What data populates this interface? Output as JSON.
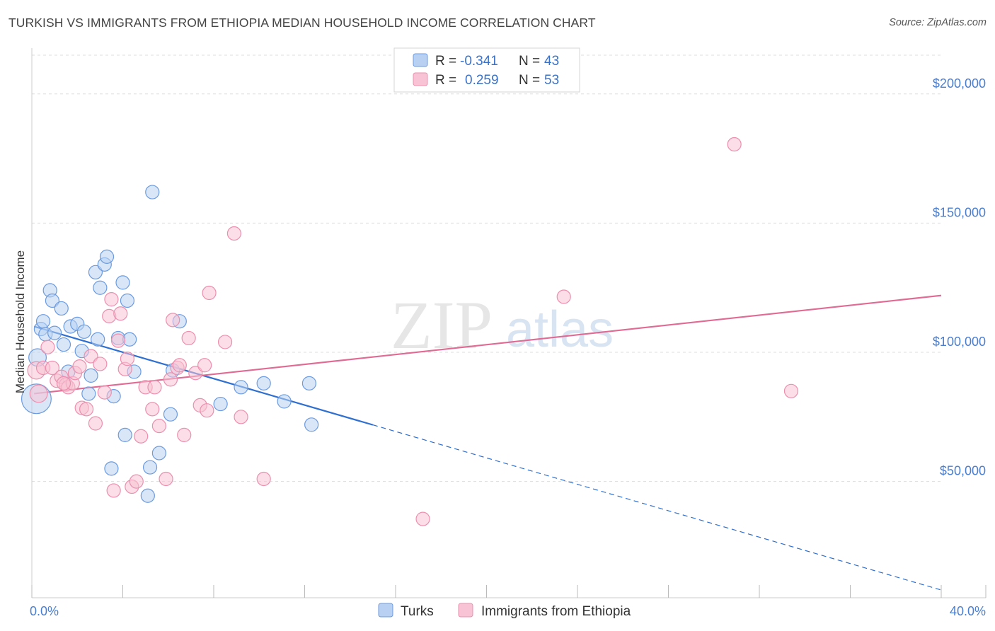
{
  "title": "TURKISH VS IMMIGRANTS FROM ETHIOPIA MEDIAN HOUSEHOLD INCOME CORRELATION CHART",
  "source": "Source: ZipAtlas.com",
  "watermark": {
    "zip": "ZIP",
    "atlas": "atlas"
  },
  "colors": {
    "turks_fill": "#b8d1f2",
    "turks_stroke": "#6b9be0",
    "turks_line": "#2e6fd0",
    "eth_fill": "#f8c3d4",
    "eth_stroke": "#ec8fae",
    "eth_line": "#e06a93",
    "grid": "#dddddd",
    "tick_label": "#4a7fd0"
  },
  "legend": {
    "rows": [
      {
        "r_label": "R =",
        "r_value": "-0.341",
        "n_label": "N =",
        "n_value": "43",
        "series": "Turks"
      },
      {
        "r_label": "R =",
        "r_value": "0.259",
        "n_label": "N =",
        "n_value": "53",
        "series": "Immigrants from Ethiopia"
      }
    ]
  },
  "chart_data": {
    "type": "scatter",
    "title": "TURKISH VS IMMIGRANTS FROM ETHIOPIA MEDIAN HOUSEHOLD INCOME CORRELATION CHART",
    "xlabel": "",
    "ylabel": "Median Household Income",
    "xlim": [
      0,
      40
    ],
    "ylim": [
      5000,
      215000
    ],
    "x_tick_labels": [
      {
        "value": 0,
        "label": "0.0%"
      },
      {
        "value": 40,
        "label": "40.0%"
      }
    ],
    "y_ticks": [
      {
        "value": 50000,
        "label": "$50,000"
      },
      {
        "value": 100000,
        "label": "$100,000"
      },
      {
        "value": 150000,
        "label": "$150,000"
      },
      {
        "value": 200000,
        "label": "$200,000"
      }
    ],
    "grid": true,
    "legend_position": "top-center",
    "series": [
      {
        "name": "Turks",
        "r": -0.341,
        "n": 43,
        "trend": {
          "x0": 0.1,
          "y0": 110000,
          "x_solid_end": 15.0,
          "x1": 40.0,
          "y1": 8000
        },
        "points": [
          {
            "x": 0.2,
            "y": 82000,
            "size": 2.2
          },
          {
            "x": 0.25,
            "y": 98000,
            "size": 1.3
          },
          {
            "x": 0.4,
            "y": 109000,
            "size": 1.0
          },
          {
            "x": 0.5,
            "y": 112000,
            "size": 1.0
          },
          {
            "x": 0.6,
            "y": 107000,
            "size": 1.0
          },
          {
            "x": 0.8,
            "y": 124000,
            "size": 1.0
          },
          {
            "x": 0.9,
            "y": 120000,
            "size": 1.0
          },
          {
            "x": 1.0,
            "y": 107500,
            "size": 1.0
          },
          {
            "x": 1.3,
            "y": 117000,
            "size": 1.0
          },
          {
            "x": 1.4,
            "y": 103000,
            "size": 1.0
          },
          {
            "x": 1.6,
            "y": 92500,
            "size": 1.0
          },
          {
            "x": 1.7,
            "y": 110000,
            "size": 1.0
          },
          {
            "x": 2.0,
            "y": 111000,
            "size": 1.0
          },
          {
            "x": 2.2,
            "y": 100500,
            "size": 1.0
          },
          {
            "x": 2.3,
            "y": 108000,
            "size": 1.0
          },
          {
            "x": 2.5,
            "y": 84000,
            "size": 1.0
          },
          {
            "x": 2.6,
            "y": 91000,
            "size": 1.0
          },
          {
            "x": 2.8,
            "y": 131000,
            "size": 1.0
          },
          {
            "x": 2.9,
            "y": 105000,
            "size": 1.0
          },
          {
            "x": 3.0,
            "y": 125000,
            "size": 1.0
          },
          {
            "x": 3.2,
            "y": 134000,
            "size": 1.0
          },
          {
            "x": 3.3,
            "y": 137000,
            "size": 1.0
          },
          {
            "x": 3.5,
            "y": 55000,
            "size": 1.0
          },
          {
            "x": 3.6,
            "y": 83000,
            "size": 1.0
          },
          {
            "x": 3.8,
            "y": 105500,
            "size": 1.0
          },
          {
            "x": 4.0,
            "y": 127000,
            "size": 1.0
          },
          {
            "x": 4.1,
            "y": 68000,
            "size": 1.0
          },
          {
            "x": 4.2,
            "y": 120000,
            "size": 1.0
          },
          {
            "x": 4.3,
            "y": 105000,
            "size": 1.0
          },
          {
            "x": 4.5,
            "y": 92500,
            "size": 1.0
          },
          {
            "x": 5.1,
            "y": 44500,
            "size": 1.0
          },
          {
            "x": 5.2,
            "y": 55500,
            "size": 1.0
          },
          {
            "x": 5.3,
            "y": 162000,
            "size": 1.0
          },
          {
            "x": 5.6,
            "y": 61000,
            "size": 1.0
          },
          {
            "x": 6.1,
            "y": 76000,
            "size": 1.0
          },
          {
            "x": 6.5,
            "y": 112000,
            "size": 1.0
          },
          {
            "x": 6.2,
            "y": 93000,
            "size": 1.0
          },
          {
            "x": 8.3,
            "y": 80000,
            "size": 1.0
          },
          {
            "x": 9.2,
            "y": 86500,
            "size": 1.0
          },
          {
            "x": 10.2,
            "y": 88000,
            "size": 1.0
          },
          {
            "x": 11.1,
            "y": 81000,
            "size": 1.0
          },
          {
            "x": 12.2,
            "y": 88000,
            "size": 1.0
          },
          {
            "x": 12.3,
            "y": 72000,
            "size": 1.0
          }
        ]
      },
      {
        "name": "Immigrants from Ethiopia",
        "r": 0.259,
        "n": 53,
        "trend": {
          "x0": 0.1,
          "y0": 84000,
          "x1": 40.0,
          "y1": 122000
        },
        "points": [
          {
            "x": 0.2,
            "y": 93000,
            "size": 1.3
          },
          {
            "x": 0.3,
            "y": 84000,
            "size": 1.3
          },
          {
            "x": 0.5,
            "y": 94000,
            "size": 1.0
          },
          {
            "x": 0.7,
            "y": 102000,
            "size": 1.0
          },
          {
            "x": 0.9,
            "y": 94000,
            "size": 1.0
          },
          {
            "x": 1.1,
            "y": 89000,
            "size": 1.0
          },
          {
            "x": 1.3,
            "y": 90500,
            "size": 1.0
          },
          {
            "x": 1.5,
            "y": 87500,
            "size": 1.0
          },
          {
            "x": 1.6,
            "y": 86500,
            "size": 1.0
          },
          {
            "x": 1.8,
            "y": 88000,
            "size": 1.0
          },
          {
            "x": 1.9,
            "y": 92000,
            "size": 1.0
          },
          {
            "x": 2.1,
            "y": 94500,
            "size": 1.0
          },
          {
            "x": 2.2,
            "y": 78500,
            "size": 1.0
          },
          {
            "x": 2.4,
            "y": 78000,
            "size": 1.0
          },
          {
            "x": 2.6,
            "y": 98500,
            "size": 1.0
          },
          {
            "x": 2.8,
            "y": 72500,
            "size": 1.0
          },
          {
            "x": 3.0,
            "y": 95500,
            "size": 1.0
          },
          {
            "x": 3.2,
            "y": 84500,
            "size": 1.0
          },
          {
            "x": 3.4,
            "y": 114000,
            "size": 1.0
          },
          {
            "x": 3.5,
            "y": 120500,
            "size": 1.0
          },
          {
            "x": 3.6,
            "y": 46500,
            "size": 1.0
          },
          {
            "x": 3.8,
            "y": 104500,
            "size": 1.0
          },
          {
            "x": 3.9,
            "y": 115000,
            "size": 1.0
          },
          {
            "x": 4.1,
            "y": 93500,
            "size": 1.0
          },
          {
            "x": 4.2,
            "y": 97500,
            "size": 1.0
          },
          {
            "x": 4.4,
            "y": 48000,
            "size": 1.0
          },
          {
            "x": 4.6,
            "y": 50000,
            "size": 1.0
          },
          {
            "x": 4.8,
            "y": 67500,
            "size": 1.0
          },
          {
            "x": 5.0,
            "y": 86500,
            "size": 1.0
          },
          {
            "x": 5.3,
            "y": 78000,
            "size": 1.0
          },
          {
            "x": 5.4,
            "y": 86500,
            "size": 1.0
          },
          {
            "x": 5.6,
            "y": 71500,
            "size": 1.0
          },
          {
            "x": 5.9,
            "y": 51000,
            "size": 1.0
          },
          {
            "x": 6.1,
            "y": 89500,
            "size": 1.0
          },
          {
            "x": 6.2,
            "y": 112500,
            "size": 1.0
          },
          {
            "x": 6.4,
            "y": 94000,
            "size": 1.0
          },
          {
            "x": 6.5,
            "y": 95000,
            "size": 1.0
          },
          {
            "x": 6.7,
            "y": 68000,
            "size": 1.0
          },
          {
            "x": 6.9,
            "y": 105500,
            "size": 1.0
          },
          {
            "x": 7.2,
            "y": 92000,
            "size": 1.0
          },
          {
            "x": 7.4,
            "y": 79500,
            "size": 1.0
          },
          {
            "x": 7.6,
            "y": 95000,
            "size": 1.0
          },
          {
            "x": 7.7,
            "y": 77500,
            "size": 1.0
          },
          {
            "x": 7.8,
            "y": 123000,
            "size": 1.0
          },
          {
            "x": 8.5,
            "y": 104000,
            "size": 1.0
          },
          {
            "x": 8.9,
            "y": 146000,
            "size": 1.0
          },
          {
            "x": 9.2,
            "y": 75000,
            "size": 1.0
          },
          {
            "x": 10.2,
            "y": 51000,
            "size": 1.0
          },
          {
            "x": 17.2,
            "y": 35500,
            "size": 1.0
          },
          {
            "x": 23.4,
            "y": 121500,
            "size": 1.0
          },
          {
            "x": 30.9,
            "y": 180500,
            "size": 1.0
          },
          {
            "x": 33.4,
            "y": 85000,
            "size": 1.0
          },
          {
            "x": 1.4,
            "y": 88000,
            "size": 1.0
          }
        ]
      }
    ]
  }
}
